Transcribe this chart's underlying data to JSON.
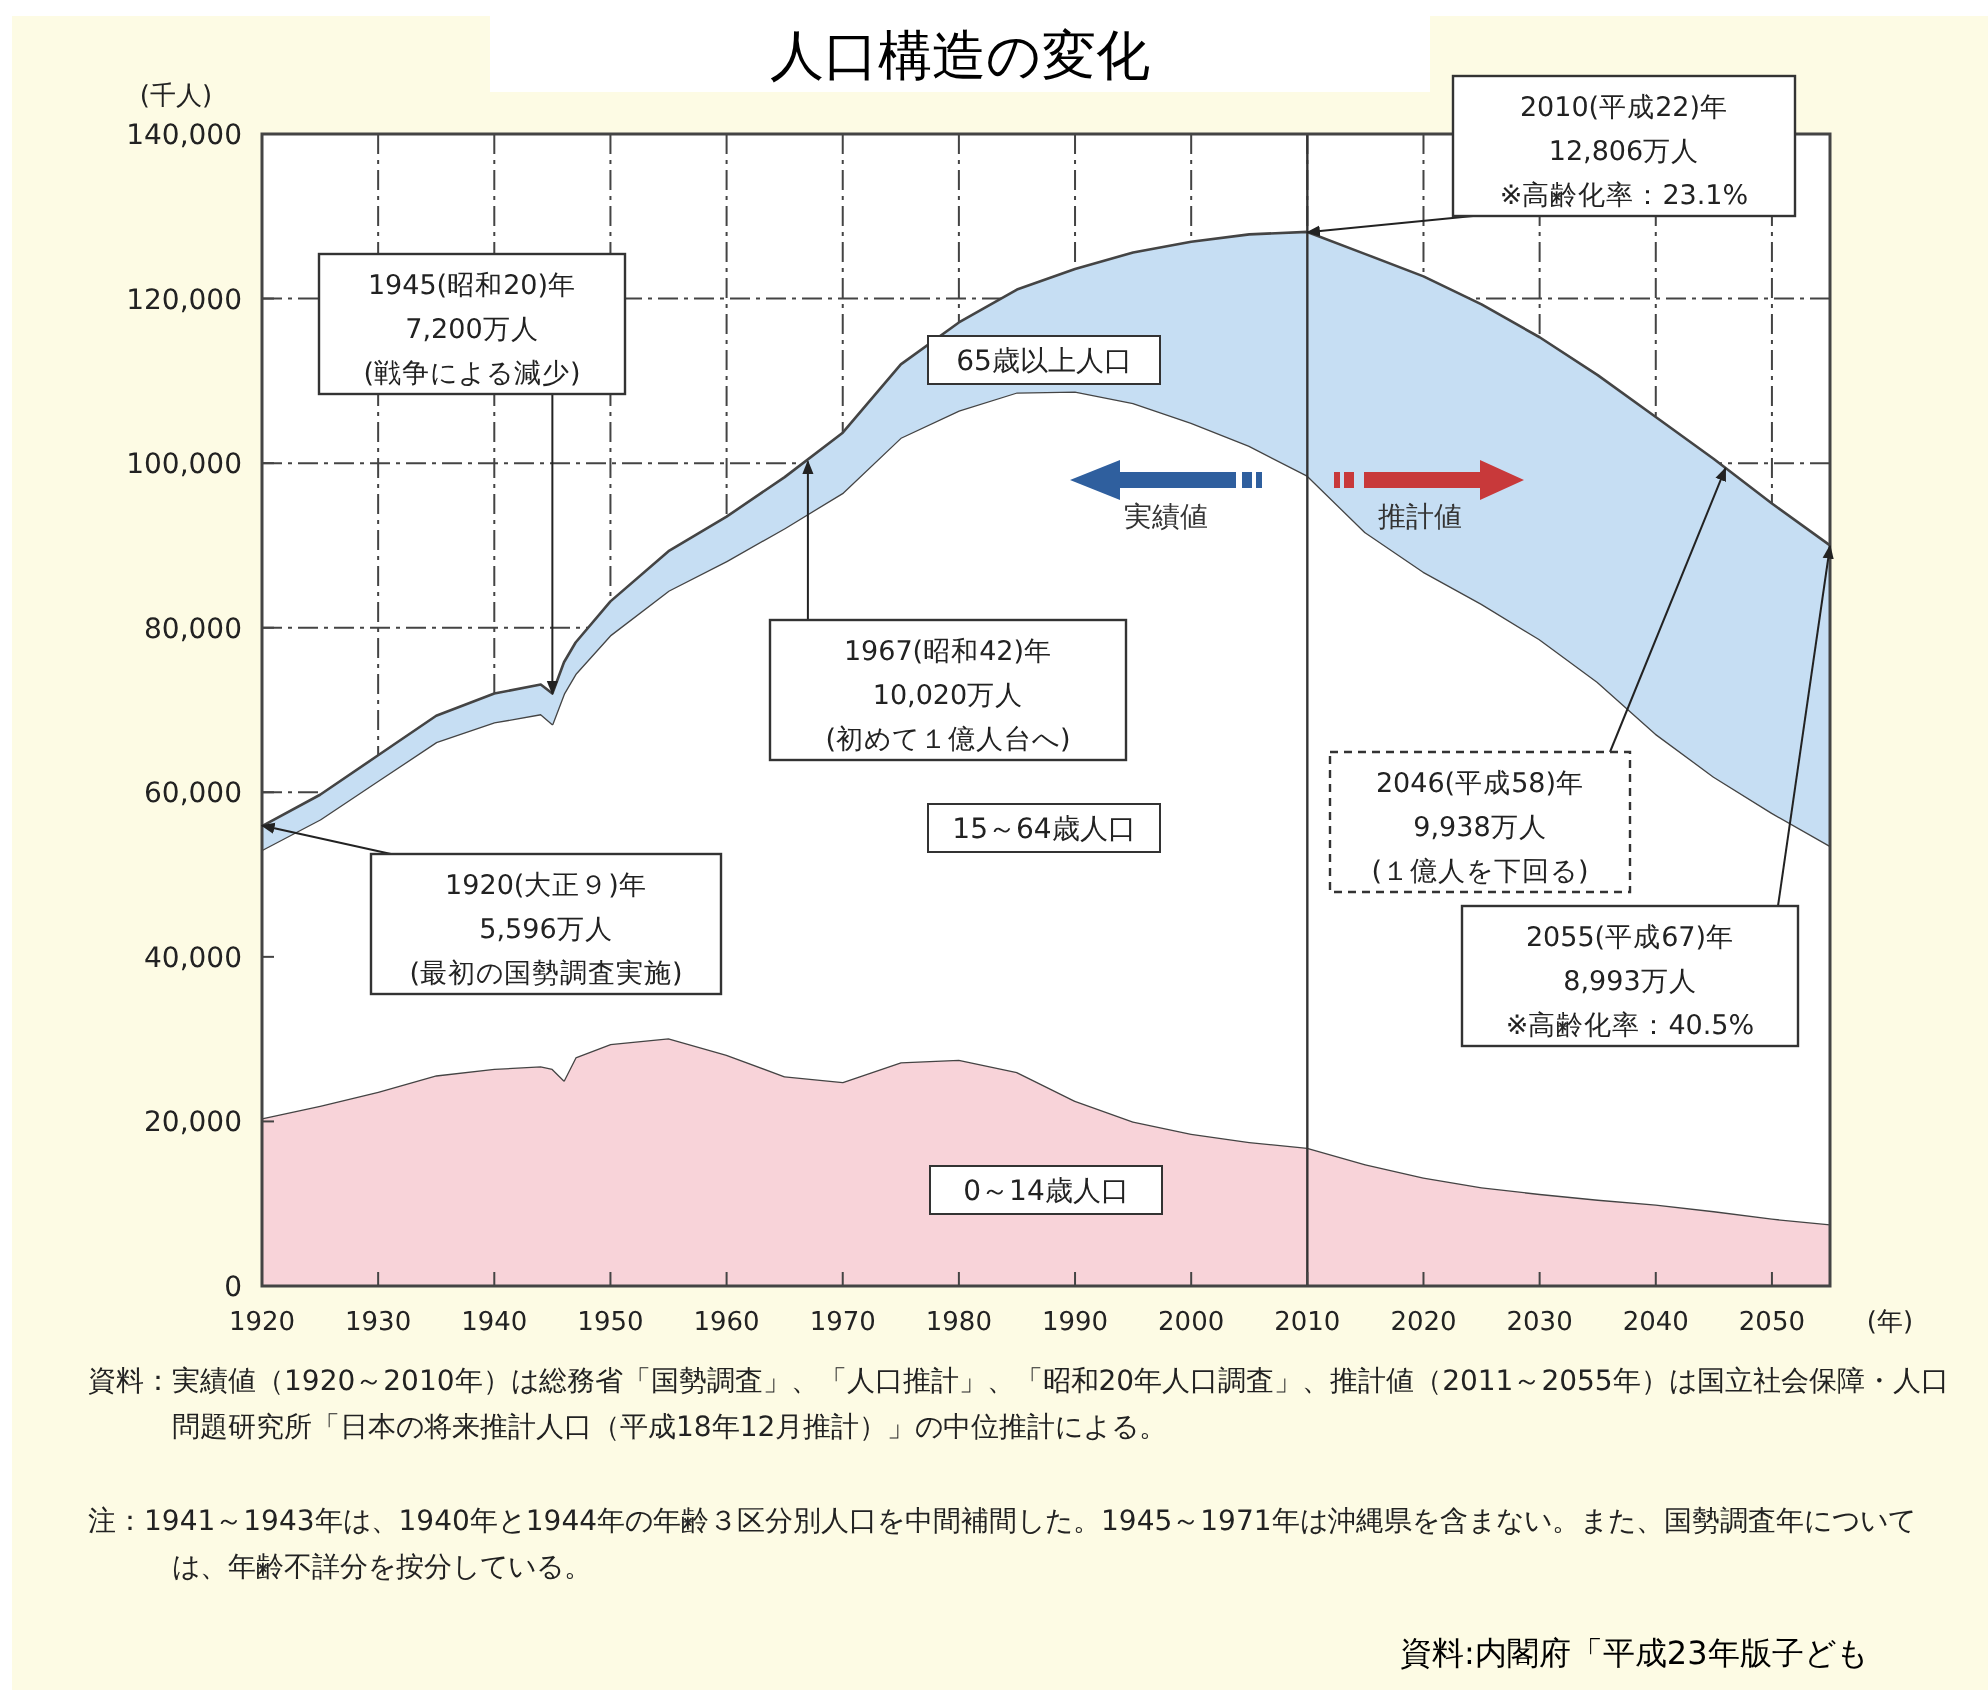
{
  "chart_data": {
    "type": "area",
    "stacked": true,
    "title": "人口構造の変化",
    "ylabel": "(千人)",
    "xlabel": "(年)",
    "x": [
      1920,
      1925,
      1930,
      1935,
      1940,
      1944,
      1945,
      1946,
      1947,
      1950,
      1955,
      1960,
      1965,
      1970,
      1975,
      1980,
      1985,
      1990,
      1995,
      2000,
      2005,
      2010,
      2015,
      2020,
      2025,
      2030,
      2035,
      2040,
      2045,
      2050,
      2055
    ],
    "series": [
      {
        "name": "0～14歳人口",
        "color": "#f8d3d9",
        "values": [
          20400,
          21900,
          23600,
          25600,
          26400,
          26700,
          26400,
          25000,
          27800,
          29400,
          30100,
          28100,
          25500,
          24800,
          27200,
          27500,
          26000,
          22500,
          20000,
          18500,
          17500,
          16800,
          14800,
          13200,
          12000,
          11200,
          10500,
          9900,
          9100,
          8200,
          7500
        ]
      },
      {
        "name": "15～64歳人口",
        "color": "#ffffff",
        "values": [
          32600,
          34800,
          37800,
          40500,
          42100,
          42800,
          41900,
          47000,
          46600,
          49700,
          54400,
          60000,
          66600,
          71600,
          75900,
          78900,
          82600,
          86200,
          87300,
          86400,
          84600,
          81700,
          76800,
          73600,
          70900,
          67400,
          62900,
          57200,
          52800,
          49300,
          46000
        ]
      },
      {
        "name": "65歳以上人口",
        "color": "#c6def3",
        "values": [
          2900,
          3000,
          3100,
          3200,
          3500,
          3600,
          3700,
          3800,
          3800,
          4100,
          4800,
          5400,
          6200,
          7300,
          8900,
          10700,
          12500,
          14900,
          18300,
          22000,
          25700,
          29600,
          33800,
          35900,
          36400,
          36700,
          37300,
          38500,
          38600,
          37600,
          36500
        ]
      }
    ],
    "xlim": [
      1920,
      2055
    ],
    "xticks": [
      1920,
      1930,
      1940,
      1950,
      1960,
      1970,
      1980,
      1990,
      2000,
      2010,
      2020,
      2030,
      2040,
      2050
    ],
    "ylim": [
      0,
      140000
    ],
    "yticks": [
      0,
      {
        "value": 20000,
        "label": "20,000"
      },
      {
        "value": 40000,
        "label": "40,000"
      },
      {
        "value": 60000,
        "label": "60,000"
      },
      {
        "value": 80000,
        "label": "80,000"
      },
      {
        "value": 100000,
        "label": "100,000"
      },
      {
        "value": 120000,
        "label": "120,000"
      },
      {
        "value": 140000,
        "label": "140,000"
      }
    ],
    "grid": true,
    "ref_lines": [
      {
        "axis": "x",
        "value": 2010,
        "color": "#333333"
      }
    ],
    "annotations": [
      {
        "text": "2010(平成22)年\n12,806万人\n※高齢化率：23.1%",
        "x": 2010,
        "y": 128060
      },
      {
        "text": "1945(昭和20)年\n7,200万人\n(戦争による減少)",
        "x": 1945,
        "y": 72000
      },
      {
        "text": "1967(昭和42)年\n10,020万人\n(初めて１億人台へ)",
        "x": 1967,
        "y": 100200
      },
      {
        "text": "2046(平成58)年\n9,938万人\n(１億人を下回る)",
        "x": 2046,
        "y": 99380
      },
      {
        "text": "1920(大正９)年\n5,596万人\n(最初の国勢調査実施)",
        "x": 1920,
        "y": 55960
      },
      {
        "text": "2055(平成67)年\n8,993万人\n※高齢化率：40.5%",
        "x": 2055,
        "y": 89930
      },
      "実績値",
      "推計値",
      "資料：実績値（1920～2010年）は総務省「国勢調査」、「人口推計」、「昭和20年人口調査」、推計値（2011～2055年）は国立社会保障・人口問題研究所「日本の将来推計人口（平成18年12月推計）」の中位推計による。",
      "注：1941～1943年は、1940年と1944年の年齢３区分別人口を中間補間した。1945～1971年は沖縄県を含まない。また、国勢調査年については、年齢不詳分を按分している。",
      "資料:内閣府「平成23年版子ども"
    ]
  }
}
